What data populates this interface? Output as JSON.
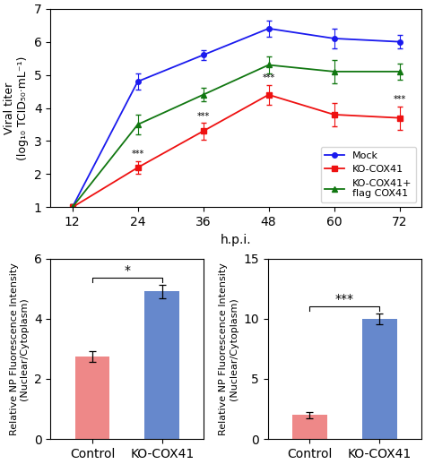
{
  "chart_data": [
    {
      "type": "line",
      "xlabel": "h.p.i.",
      "ylabel": "Viral titer\n(log₁₀ TCID₅₀·mL⁻¹)",
      "x": [
        12,
        24,
        36,
        48,
        60,
        72
      ],
      "series": [
        {
          "name": "Mock",
          "color": "#1a1aee",
          "marker": "o",
          "values": [
            1.0,
            4.8,
            5.6,
            6.4,
            6.1,
            6.0
          ],
          "errors": [
            0.1,
            0.25,
            0.15,
            0.25,
            0.3,
            0.2
          ]
        },
        {
          "name": "KO-COX41",
          "color": "#ee1111",
          "marker": "s",
          "values": [
            1.0,
            2.2,
            3.3,
            4.4,
            3.8,
            3.7
          ],
          "errors": [
            0.1,
            0.2,
            0.25,
            0.3,
            0.35,
            0.35
          ],
          "annotations": [
            {
              "text": "***",
              "x": [
                24,
                36,
                48,
                72
              ]
            }
          ]
        },
        {
          "name": "KO-COX41+\nflag COX41",
          "color": "#117711",
          "marker": "^",
          "values": [
            1.0,
            3.5,
            4.4,
            5.3,
            5.1,
            5.1
          ],
          "errors": [
            0.1,
            0.3,
            0.2,
            0.25,
            0.35,
            0.25
          ]
        }
      ],
      "xlim": [
        8,
        76
      ],
      "ylim": [
        1,
        7
      ],
      "xticks": [
        12,
        24,
        36,
        48,
        60,
        72
      ],
      "yticks": [
        1,
        2,
        3,
        4,
        5,
        6,
        7
      ],
      "legend": "lower right"
    },
    {
      "type": "bar",
      "ylabel": "Relative NP Fluorescence Intensity\n(Nuclear/Cytoplasm)",
      "categories": [
        "Control",
        "KO-COX41"
      ],
      "values": [
        2.75,
        4.9
      ],
      "errors": [
        0.18,
        0.22
      ],
      "colors": [
        "#ee8888",
        "#6688cc"
      ],
      "ylim": [
        0,
        6
      ],
      "yticks": [
        0,
        2,
        4,
        6
      ],
      "annotations": [
        {
          "text": "*"
        }
      ]
    },
    {
      "type": "bar",
      "ylabel": "Relative NP Fluorescence Intensity\n(Nuclear/Cytoplasm)",
      "categories": [
        "Control",
        "KO-COX41"
      ],
      "values": [
        2.0,
        10.0
      ],
      "errors": [
        0.25,
        0.45
      ],
      "colors": [
        "#ee8888",
        "#6688cc"
      ],
      "ylim": [
        0,
        15
      ],
      "yticks": [
        0,
        5,
        10,
        15
      ],
      "annotations": [
        {
          "text": "***"
        }
      ]
    }
  ]
}
